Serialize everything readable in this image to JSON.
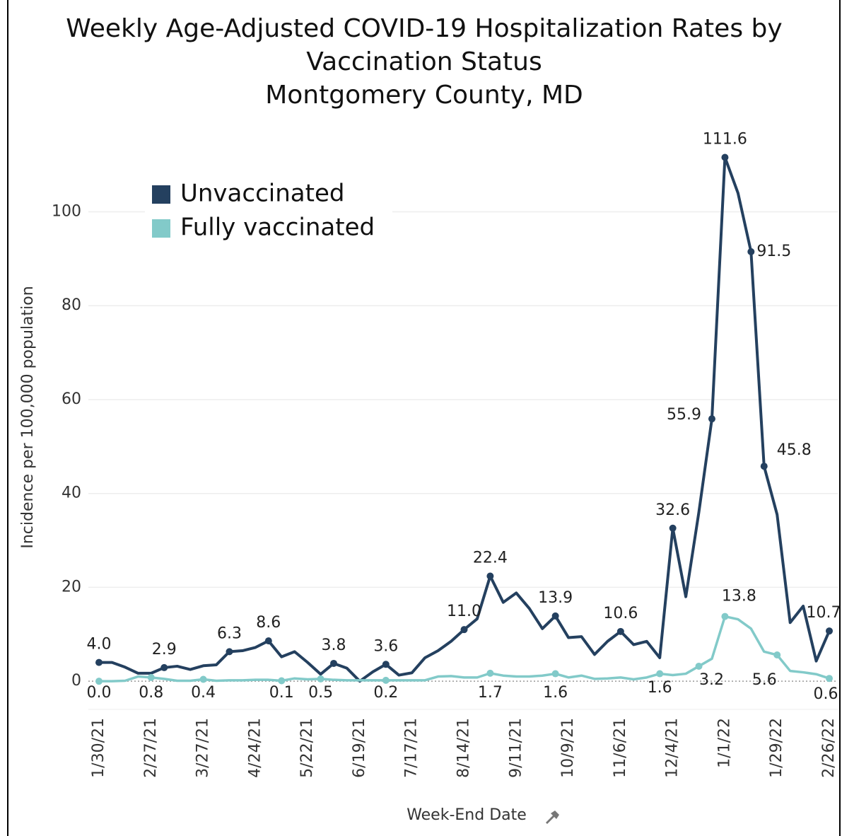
{
  "chart_data": {
    "type": "line",
    "title": [
      "Weekly Age-Adjusted COVID-19 Hospitalization Rates by",
      "Vaccination Status",
      "Montgomery County, MD"
    ],
    "x_label": "Week-End Date",
    "y_label": "Incidence per 100,000 population",
    "categories": [
      "1/30/21",
      null,
      null,
      null,
      "2/27/21",
      null,
      null,
      null,
      "3/27/21",
      null,
      null,
      null,
      "4/24/21",
      null,
      null,
      null,
      "5/22/21",
      null,
      null,
      null,
      "6/19/21",
      null,
      null,
      null,
      "7/17/21",
      null,
      null,
      null,
      "8/14/21",
      null,
      null,
      null,
      "9/11/21",
      null,
      null,
      null,
      "10/9/21",
      null,
      null,
      null,
      "11/6/21",
      null,
      null,
      null,
      "12/4/21",
      null,
      null,
      null,
      "1/1/22",
      null,
      null,
      null,
      "1/29/22",
      null,
      null,
      null,
      "2/26/22"
    ],
    "series": [
      {
        "name": "Unvaccinated",
        "color": "#24405f",
        "values": [
          4.0,
          4.0,
          3.0,
          1.7,
          1.7,
          2.9,
          3.2,
          2.5,
          3.3,
          3.5,
          6.3,
          6.5,
          7.2,
          8.6,
          5.2,
          6.3,
          4.0,
          1.5,
          3.8,
          2.8,
          0.0,
          2.0,
          3.6,
          1.3,
          1.8,
          5.0,
          6.5,
          8.5,
          11.0,
          13.3,
          22.4,
          16.8,
          18.8,
          15.5,
          11.2,
          13.9,
          9.3,
          9.5,
          5.7,
          8.5,
          10.6,
          7.8,
          8.5,
          5.0,
          32.6,
          18.0,
          36.0,
          55.9,
          111.6,
          104.0,
          91.5,
          45.8,
          35.5,
          12.5,
          16.0,
          4.3,
          10.7
        ],
        "value_labels": [
          "4.0",
          null,
          null,
          null,
          null,
          "2.9",
          null,
          null,
          null,
          null,
          "6.3",
          null,
          null,
          "8.6",
          null,
          null,
          null,
          null,
          "3.8",
          null,
          null,
          null,
          "3.6",
          null,
          null,
          null,
          null,
          null,
          "11.0",
          null,
          "22.4",
          null,
          null,
          null,
          null,
          "13.9",
          null,
          null,
          null,
          null,
          "10.6",
          null,
          null,
          null,
          "32.6",
          null,
          null,
          "55.9",
          "111.6",
          null,
          "91.5",
          "45.8",
          null,
          null,
          null,
          null,
          "10.7"
        ]
      },
      {
        "name": "Fully vaccinated",
        "color": "#82cac9",
        "values": [
          0.0,
          0.0,
          0.1,
          1.0,
          0.8,
          0.5,
          0.1,
          0.1,
          0.4,
          0.1,
          0.2,
          0.2,
          0.3,
          0.3,
          0.1,
          0.6,
          0.4,
          0.5,
          0.3,
          0.2,
          0.2,
          0.2,
          0.2,
          0.2,
          0.2,
          0.2,
          1.0,
          1.1,
          0.8,
          0.8,
          1.7,
          1.2,
          1.0,
          1.0,
          1.2,
          1.6,
          0.8,
          1.2,
          0.5,
          0.6,
          0.8,
          0.4,
          0.8,
          1.6,
          1.3,
          1.6,
          3.2,
          4.8,
          13.8,
          13.2,
          11.2,
          6.3,
          5.6,
          2.2,
          1.9,
          1.5,
          0.6
        ],
        "value_labels": [
          "0.0",
          null,
          null,
          null,
          "0.8",
          null,
          null,
          null,
          "0.4",
          null,
          null,
          null,
          null,
          null,
          "0.1",
          null,
          null,
          "0.5",
          null,
          null,
          null,
          null,
          "0.2",
          null,
          null,
          null,
          null,
          null,
          null,
          null,
          "1.7",
          null,
          null,
          null,
          null,
          "1.6",
          null,
          null,
          null,
          null,
          null,
          null,
          null,
          "1.6",
          null,
          null,
          "3.2",
          null,
          "13.8",
          null,
          null,
          null,
          "5.6",
          null,
          null,
          null,
          "0.6"
        ]
      }
    ],
    "ylim": [
      -6,
      118
    ],
    "yticks": [
      0,
      20,
      40,
      60,
      80,
      100
    ],
    "grid": true,
    "legend": "upper left"
  }
}
